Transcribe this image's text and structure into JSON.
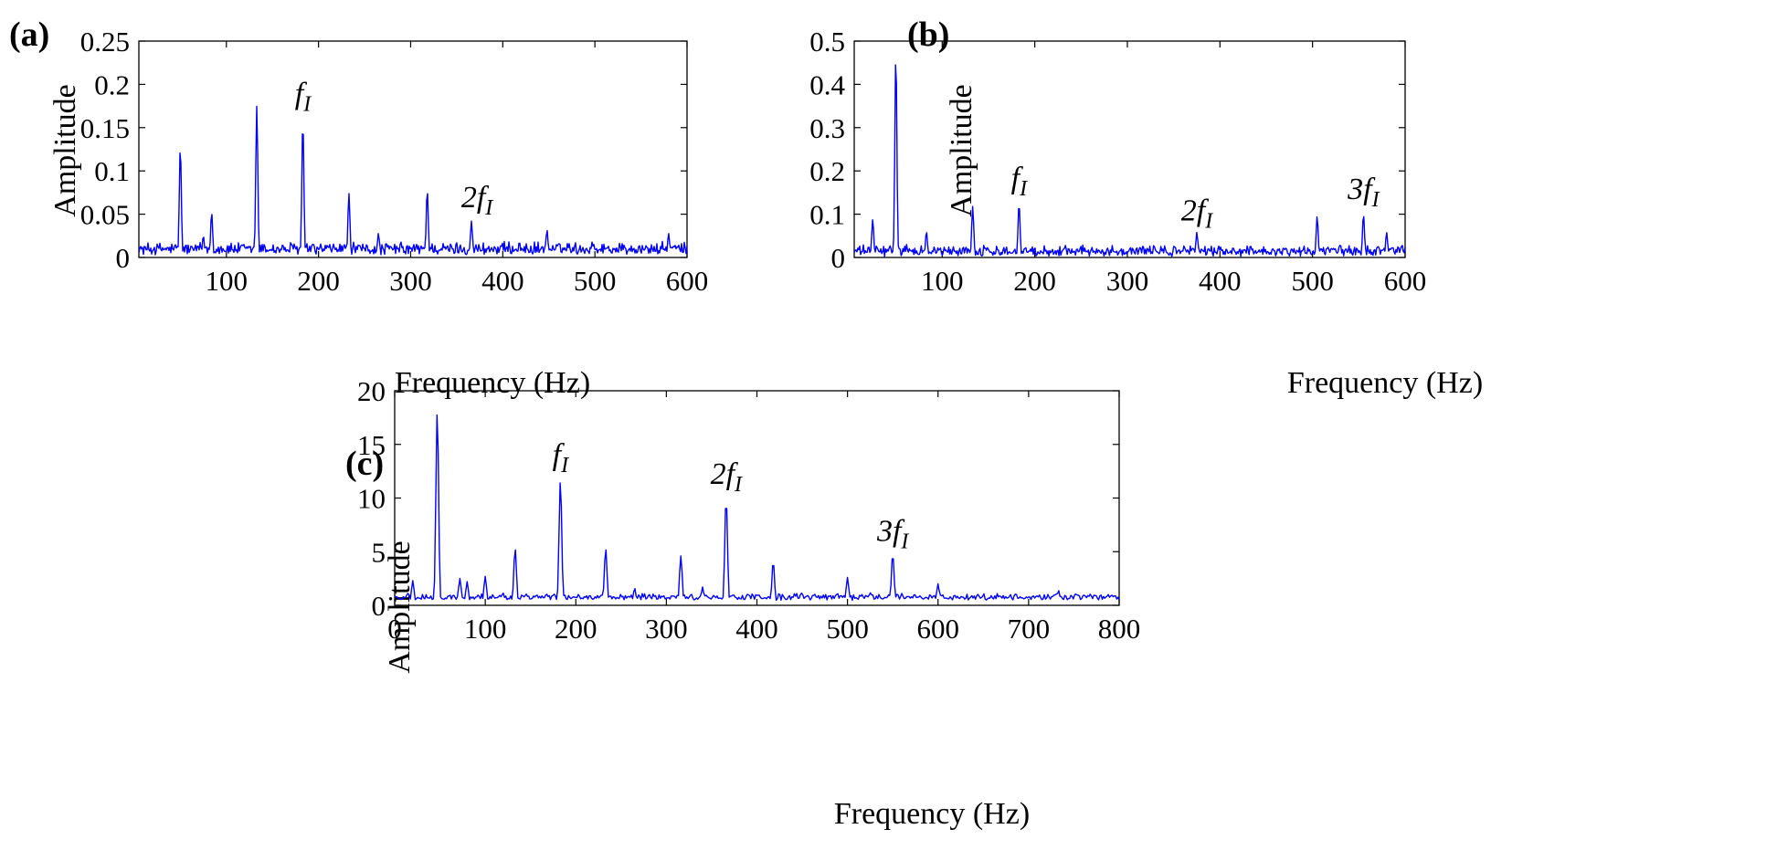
{
  "chart_data": [
    {
      "panel": "(a)",
      "type": "line",
      "xlabel": "Frequency (Hz)",
      "ylabel": "Amplitude",
      "xlim": [
        5,
        600
      ],
      "ylim": [
        0,
        0.25
      ],
      "xticks": [
        100,
        200,
        300,
        400,
        500,
        600
      ],
      "yticks": [
        0,
        0.05,
        0.1,
        0.15,
        0.2,
        0.25
      ],
      "ytick_labels": [
        "0",
        "0.05",
        "0.1",
        "0.15",
        "0.2",
        "0.25"
      ],
      "series": [
        {
          "name": "spectrum",
          "color": "#0000ff",
          "baseline": 0.008,
          "noise": 0.012,
          "peaks": [
            [
              50,
              0.128
            ],
            [
              84,
              0.052
            ],
            [
              75,
              0.025
            ],
            [
              133,
              0.175
            ],
            [
              183,
              0.158
            ],
            [
              233,
              0.074
            ],
            [
              265,
              0.028
            ],
            [
              318,
              0.078
            ],
            [
              366,
              0.042
            ],
            [
              398,
              0.014
            ],
            [
              418,
              0.018
            ],
            [
              448,
              0.032
            ],
            [
              472,
              0.016
            ],
            [
              497,
              0.018
            ],
            [
              580,
              0.028
            ]
          ]
        }
      ],
      "annotations": [
        {
          "base": "f",
          "sub": "I",
          "x": 183,
          "y": 0.178
        },
        {
          "base": "2f",
          "sub": "I",
          "x": 372,
          "y": 0.058
        }
      ]
    },
    {
      "panel": "(b)",
      "type": "line",
      "xlabel": "Frequency (Hz)",
      "ylabel": "Amplitude",
      "xlim": [
        5,
        600
      ],
      "ylim": [
        0,
        0.5
      ],
      "xticks": [
        100,
        200,
        300,
        400,
        500,
        600
      ],
      "yticks": [
        0,
        0.1,
        0.2,
        0.3,
        0.4,
        0.5
      ],
      "ytick_labels": [
        "0",
        "0.1",
        "0.2",
        "0.3",
        "0.4",
        "0.5"
      ],
      "series": [
        {
          "name": "spectrum",
          "color": "#0000ff",
          "baseline": 0.012,
          "noise": 0.02,
          "peaks": [
            [
              25,
              0.088
            ],
            [
              50,
              0.472
            ],
            [
              83,
              0.06
            ],
            [
              133,
              0.118
            ],
            [
              183,
              0.125
            ],
            [
              233,
              0.028
            ],
            [
              375,
              0.058
            ],
            [
              505,
              0.095
            ],
            [
              530,
              0.03
            ],
            [
              555,
              0.1
            ],
            [
              580,
              0.058
            ]
          ]
        }
      ],
      "annotations": [
        {
          "base": "f",
          "sub": "I",
          "x": 183,
          "y": 0.16
        },
        {
          "base": "2f",
          "sub": "I",
          "x": 375,
          "y": 0.085
        },
        {
          "base": "3f",
          "sub": "I",
          "x": 555,
          "y": 0.135
        }
      ]
    },
    {
      "panel": "(c)",
      "type": "line",
      "xlabel": "Frequency (Hz)",
      "ylabel": "Amplitude",
      "xlim": [
        0,
        800
      ],
      "ylim": [
        0,
        20
      ],
      "xticks": [
        0,
        100,
        200,
        300,
        400,
        500,
        600,
        700,
        800
      ],
      "yticks": [
        0,
        5,
        10,
        15,
        20
      ],
      "ytick_labels": [
        "0",
        "5",
        "10",
        "15",
        "20"
      ],
      "series": [
        {
          "name": "spectrum",
          "color": "#0000ff",
          "baseline": 0.7,
          "noise": 0.5,
          "peaks": [
            [
              20,
              2.3
            ],
            [
              47,
              18.2
            ],
            [
              72,
              2.5
            ],
            [
              80,
              2.2
            ],
            [
              100,
              2.7
            ],
            [
              133,
              5.3
            ],
            [
              183,
              11.7
            ],
            [
              233,
              5.3
            ],
            [
              265,
              1.6
            ],
            [
              316,
              4.6
            ],
            [
              340,
              1.7
            ],
            [
              366,
              10.0
            ],
            [
              418,
              4.1
            ],
            [
              500,
              2.6
            ],
            [
              525,
              1.2
            ],
            [
              550,
              4.8
            ],
            [
              600,
              2.0
            ],
            [
              680,
              1.0
            ],
            [
              733,
              1.4
            ],
            [
              760,
              0.9
            ],
            [
              785,
              0.8
            ]
          ]
        }
      ],
      "annotations": [
        {
          "base": "f",
          "sub": "I",
          "x": 183,
          "y": 13.1
        },
        {
          "base": "2f",
          "sub": "I",
          "x": 366,
          "y": 11.3
        },
        {
          "base": "3f",
          "sub": "I",
          "x": 550,
          "y": 6.0
        }
      ]
    }
  ]
}
